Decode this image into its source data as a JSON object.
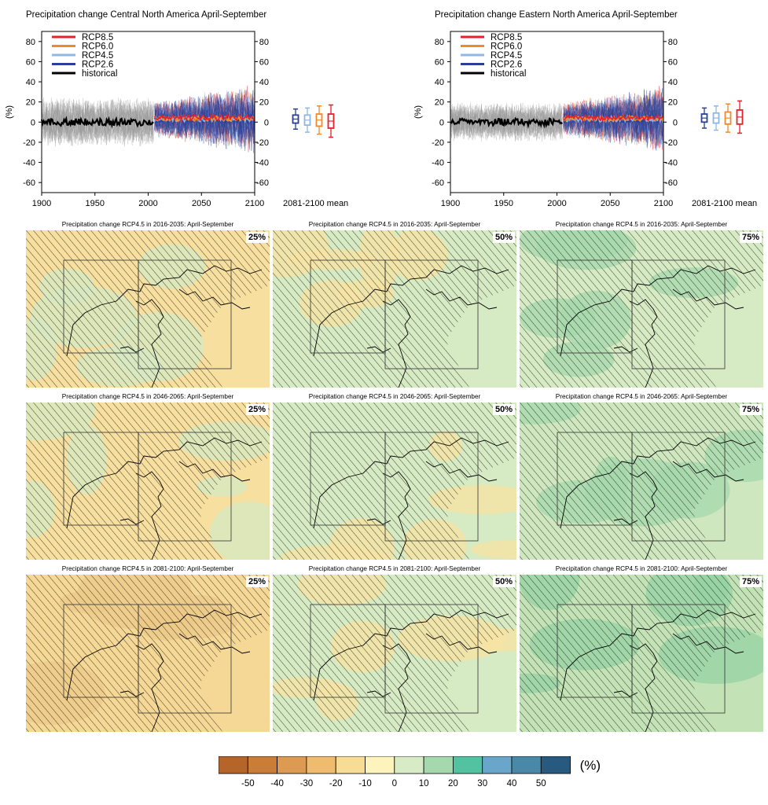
{
  "timeseries": [
    {
      "title": "Precipitation change Central North America April-September",
      "box_means": {
        "RCP2.6": 3,
        "RCP4.5": 2,
        "RCP6.0": 2,
        "RCP8.5": 1
      },
      "ylim_ext": {
        "hist": 25,
        "future": 40
      }
    },
    {
      "title": "Precipitation change Eastern North America April-September",
      "box_means": {
        "RCP2.6": 4,
        "RCP4.5": 4,
        "RCP6.0": 4,
        "RCP8.5": 5
      },
      "ylim_ext": {
        "hist": 20,
        "future": 38
      }
    }
  ],
  "legend": [
    {
      "name": "RCP8.5",
      "color": "#e8202a"
    },
    {
      "name": "RCP6.0",
      "color": "#ef8a2a"
    },
    {
      "name": "RCP4.5",
      "color": "#8fb7e3"
    },
    {
      "name": "RCP2.6",
      "color": "#2a3f97"
    },
    {
      "name": "historical",
      "color": "#000000"
    }
  ],
  "axes": {
    "ylabel": "(%)",
    "yticks": [
      80,
      60,
      40,
      20,
      0,
      -20,
      -40,
      -60
    ],
    "xticks": [
      "1900",
      "1950",
      "2000",
      "2050",
      "2100"
    ],
    "box_label": "2081-2100 mean",
    "xlim": [
      1900,
      2100
    ],
    "ylim": [
      -70,
      90
    ]
  },
  "maps": {
    "rows": [
      {
        "period": "2016-2035",
        "title": "Precipitation change RCP4.5 in 2016-2035: April-September"
      },
      {
        "period": "2046-2065",
        "title": "Precipitation change RCP4.5 in 2046-2065: April-September"
      },
      {
        "period": "2081-2100",
        "title": "Precipitation change RCP4.5 in 2081-2100: April-September"
      }
    ],
    "percentiles": [
      "25%",
      "50%",
      "75%"
    ]
  },
  "chart_data": {
    "type": "heatmap",
    "colorbar": {
      "ticks": [
        "-50",
        "-40",
        "-30",
        "-20",
        "-10",
        "0",
        "10",
        "20",
        "30",
        "40",
        "50"
      ],
      "unit": "(%)",
      "colors": [
        "#b5652a",
        "#c97d37",
        "#dd9a52",
        "#efbc6f",
        "#f6dc97",
        "#fcf3bd",
        "#d7ebc6",
        "#a5d8ac",
        "#52c2a0",
        "#69a6c9",
        "#4a88a8",
        "#275a7e"
      ]
    }
  }
}
